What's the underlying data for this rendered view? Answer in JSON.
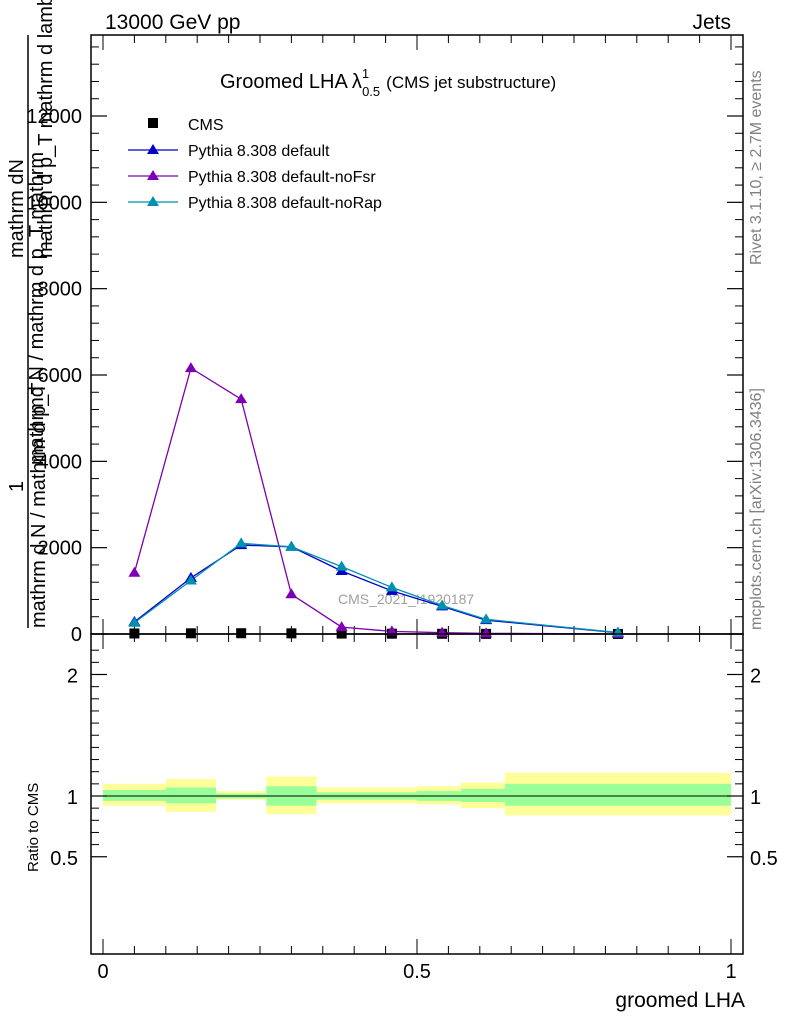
{
  "header": {
    "left": "13000 GeV pp",
    "right": "Jets"
  },
  "side_text": {
    "top": "Rivet 3.1.10, ≥ 2.7M events",
    "bottom": "mcplots.cern.ch [arXiv:1306.3436]"
  },
  "watermark": "CMS_2021_I1920187",
  "title": {
    "main": "Groomed LHA",
    "lambda": "λ",
    "sup": "1",
    "sub": "0.5",
    "extra": "(CMS jet substructure)"
  },
  "y_label_numerator": "mathrm dN",
  "y_label_numerator2": "mathrm d p_T mathrm d lambda",
  "y_label_denominator": "mathrm d N / mathrm d p_T",
  "y_label_denominator2": "mathrmd N / mathrm d p_T mathrm",
  "y_label_one": "1",
  "x_label": "groomed LHA",
  "ratio_ylabel": "Ratio to CMS",
  "colors": {
    "cms": "#000000",
    "default": "#0000cc",
    "noFsr": "#7d00b4",
    "noRap": "#0090b0",
    "band_inner": "#99ff99",
    "band_outer": "#ffff99"
  },
  "chart_data": {
    "type": "line",
    "xlabel": "groomed LHA",
    "ylabel": "1 / (mathrm N) mathrm dN / mathrm d p_T mathrm d lambda",
    "xlim": [
      0,
      1
    ],
    "main": {
      "ylim": [
        0,
        14000
      ],
      "yticks": [
        {
          "v": 0,
          "label": "0"
        },
        {
          "v": 2000,
          "label": "2000"
        },
        {
          "v": 4000,
          "label": "4000"
        },
        {
          "v": 6000,
          "label": "6000"
        },
        {
          "v": 8000,
          "label": "8000"
        },
        {
          "v": 10000,
          "label": "10000"
        },
        {
          "v": 12000,
          "label": "12000"
        }
      ],
      "series": [
        {
          "key": "cms",
          "name": "CMS",
          "marker": "square",
          "x": [
            0.05,
            0.14,
            0.22,
            0.3,
            0.38,
            0.46,
            0.54,
            0.61,
            0.82
          ],
          "y": [
            12,
            16,
            18,
            15,
            10,
            7,
            5,
            3,
            1
          ]
        },
        {
          "key": "default",
          "name": "Pythia 8.308 default",
          "marker": "triangle",
          "x": [
            0.05,
            0.14,
            0.22,
            0.3,
            0.38,
            0.46,
            0.54,
            0.61,
            0.82
          ],
          "y": [
            280,
            1300,
            2060,
            2020,
            1460,
            1000,
            640,
            320,
            30
          ]
        },
        {
          "key": "noFsr",
          "name": "Pythia 8.308 default-noFsr",
          "marker": "triangle",
          "x": [
            0.05,
            0.14,
            0.22,
            0.3,
            0.38,
            0.46,
            0.54,
            0.61,
            0.82
          ],
          "y": [
            1420,
            6160,
            5440,
            920,
            160,
            60,
            30,
            15,
            2
          ]
        },
        {
          "key": "noRap",
          "name": "Pythia 8.308 default-noRap",
          "marker": "triangle",
          "x": [
            0.05,
            0.14,
            0.22,
            0.3,
            0.38,
            0.46,
            0.54,
            0.61,
            0.82
          ],
          "y": [
            260,
            1240,
            2100,
            2020,
            1560,
            1080,
            660,
            340,
            35
          ]
        }
      ]
    },
    "ratio": {
      "ylim": [
        0.4,
        2.3
      ],
      "yticks": [
        {
          "v": 0.5,
          "label": "0.5"
        },
        {
          "v": 1,
          "label": "1"
        },
        {
          "v": 2,
          "label": "2"
        }
      ],
      "bins": [
        {
          "x0": 0.0,
          "x1": 0.1,
          "inner": [
            0.96,
            1.05
          ],
          "outer": [
            0.92,
            1.1
          ]
        },
        {
          "x0": 0.1,
          "x1": 0.18,
          "inner": [
            0.94,
            1.07
          ],
          "outer": [
            0.87,
            1.14
          ]
        },
        {
          "x0": 0.18,
          "x1": 0.26,
          "inner": [
            0.98,
            1.02
          ],
          "outer": [
            0.97,
            1.04
          ]
        },
        {
          "x0": 0.26,
          "x1": 0.34,
          "inner": [
            0.92,
            1.08
          ],
          "outer": [
            0.85,
            1.16
          ]
        },
        {
          "x0": 0.34,
          "x1": 0.5,
          "inner": [
            0.97,
            1.03
          ],
          "outer": [
            0.94,
            1.07
          ]
        },
        {
          "x0": 0.5,
          "x1": 0.57,
          "inner": [
            0.96,
            1.04
          ],
          "outer": [
            0.93,
            1.08
          ]
        },
        {
          "x0": 0.57,
          "x1": 0.64,
          "inner": [
            0.95,
            1.06
          ],
          "outer": [
            0.9,
            1.11
          ]
        },
        {
          "x0": 0.64,
          "x1": 1.0,
          "inner": [
            0.92,
            1.1
          ],
          "outer": [
            0.84,
            1.19
          ]
        }
      ]
    },
    "xticks": [
      {
        "v": 0,
        "label": "0"
      },
      {
        "v": 0.5,
        "label": "0.5"
      },
      {
        "v": 1,
        "label": "1"
      }
    ]
  }
}
